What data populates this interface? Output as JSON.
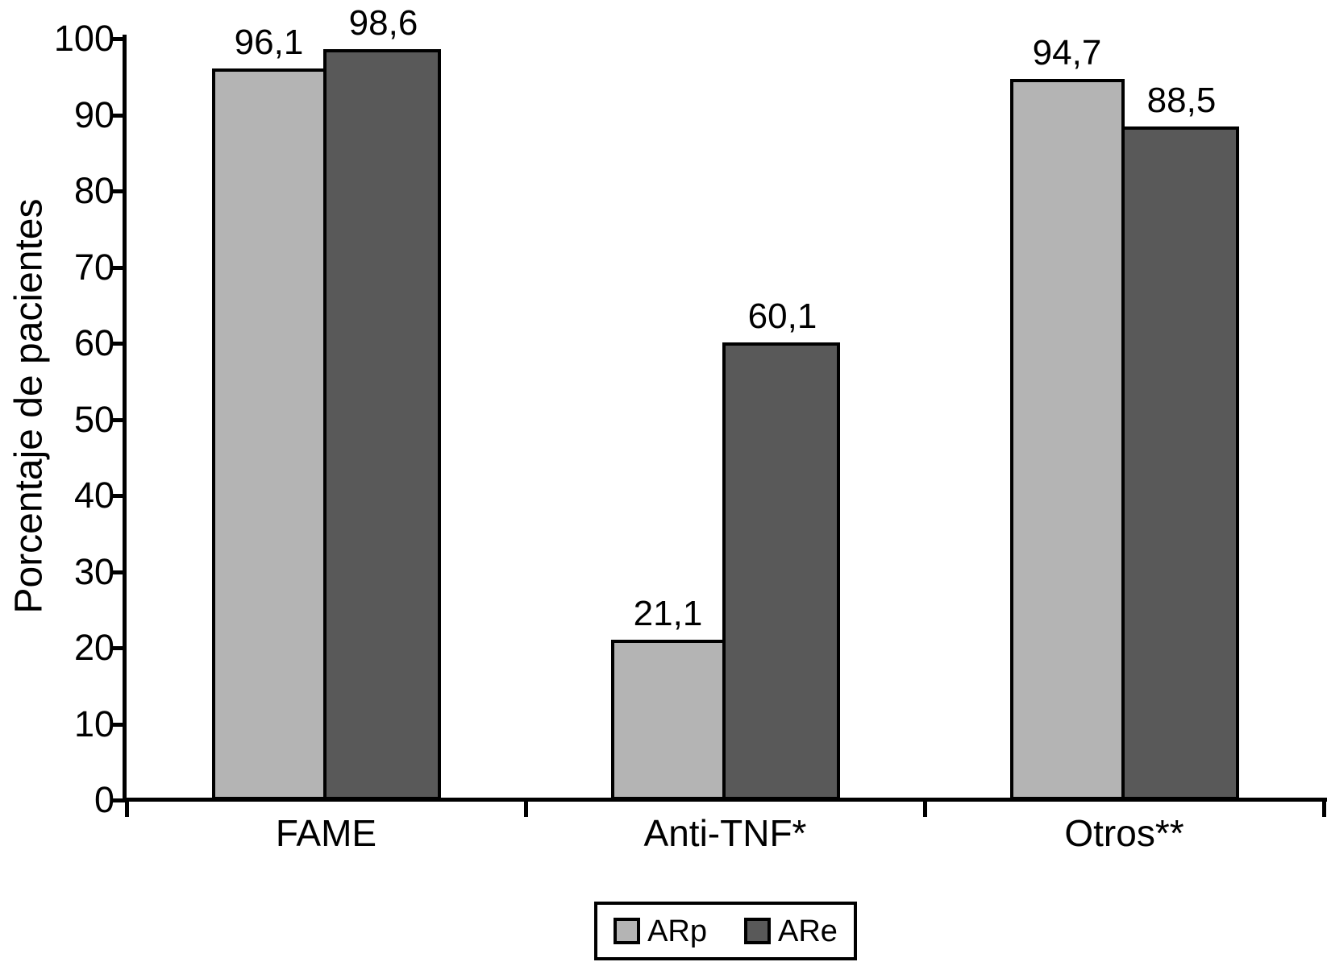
{
  "chart_data": {
    "type": "bar",
    "title": "",
    "xlabel": "",
    "ylabel": "Porcentaje de pacientes",
    "categories": [
      "FAME",
      "Anti-TNF*",
      "Otros**"
    ],
    "series": [
      {
        "name": "ARp",
        "color": "#b4b4b4",
        "values": [
          96.1,
          21.1,
          94.7
        ],
        "labels": [
          "96,1",
          "21,1",
          "94,7"
        ]
      },
      {
        "name": "ARe",
        "color": "#595959",
        "values": [
          98.6,
          60.1,
          88.5
        ],
        "labels": [
          "98,6",
          "60,1",
          "88,5"
        ]
      }
    ],
    "ylim": [
      0,
      100
    ],
    "yticks": [
      0,
      10,
      20,
      30,
      40,
      50,
      60,
      70,
      80,
      90,
      100
    ],
    "grid": false,
    "legend_position": "bottom",
    "bar_border_color": "#000000",
    "axis_color": "#000000",
    "background_color": "#ffffff"
  }
}
